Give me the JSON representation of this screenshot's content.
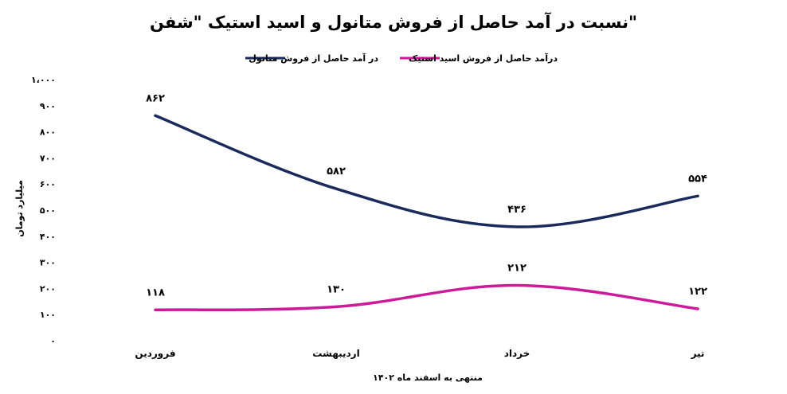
{
  "chart_data": {
    "type": "line",
    "title": "نسبت در آمد حاصل از فروش متانول و اسید استیک \"شفن\"",
    "xlabel": "منتهی به اسفند ماه ۱۴۰۲",
    "ylabel": "میلیارد تومان",
    "categories": [
      "فروردین",
      "اردیبهشت",
      "خرداد",
      "تیر"
    ],
    "ylim": [
      0,
      1000
    ],
    "yticks": [
      0,
      100,
      200,
      300,
      400,
      500,
      600,
      700,
      800,
      900,
      1000
    ],
    "ytick_labels": [
      "۰",
      "۱۰۰",
      "۲۰۰",
      "۳۰۰",
      "۴۰۰",
      "۵۰۰",
      "۶۰۰",
      "۷۰۰",
      "۸۰۰",
      "۹۰۰",
      "۱،۰۰۰"
    ],
    "legend_position": "top",
    "grid": false,
    "series": [
      {
        "name": "در آمد حاصل از فروش متانول",
        "color": "#1b2a5c",
        "values": [
          862,
          582,
          436,
          554
        ],
        "labels": [
          "۸۶۲",
          "۵۸۲",
          "۴۳۶",
          "۵۵۴"
        ]
      },
      {
        "name": "درآمد حاصل از فروش اسید استیک",
        "color": "#cc1a99",
        "values": [
          118,
          130,
          212,
          122
        ],
        "labels": [
          "۱۱۸",
          "۱۳۰",
          "۲۱۲",
          "۱۲۲"
        ]
      }
    ]
  }
}
